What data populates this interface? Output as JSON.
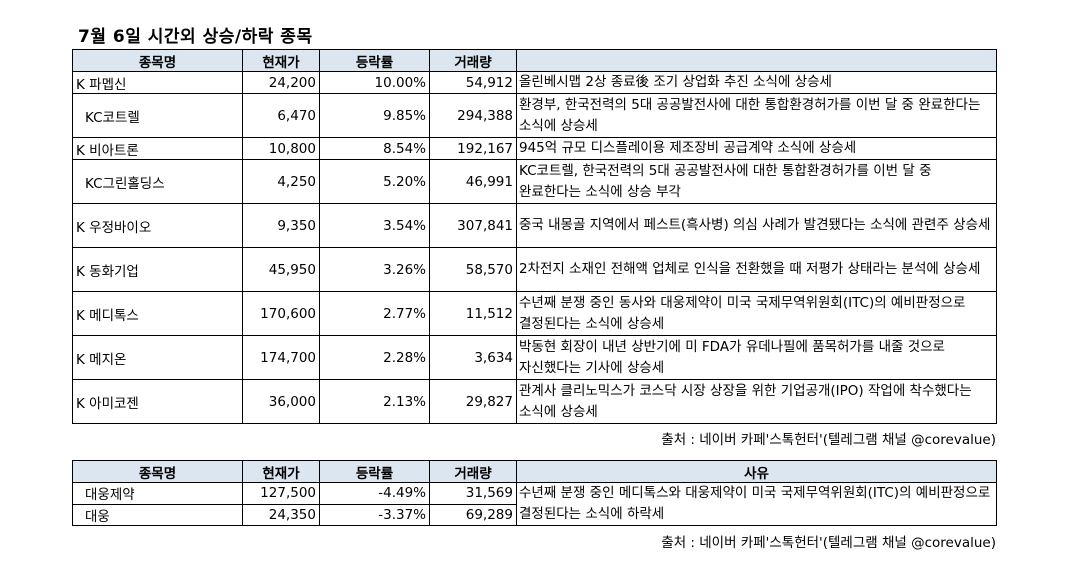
{
  "title": "7월 6일  시간외 상승/하락 종목",
  "up_table": {
    "headers": [
      "종목명",
      "현재가",
      "등락률",
      "거래량",
      ""
    ],
    "rows": [
      {
        "name": "K 파멥신",
        "indent": false,
        "price": "24,200",
        "change": "10.00%",
        "volume": "54,912",
        "reason": "올린베시맵 2상 종료後 조기 상업화 추진 소식에 상승세"
      },
      {
        "name": "KC코트렐",
        "indent": true,
        "price": "6,470",
        "change": "9.85%",
        "volume": "294,388",
        "reason": "환경부, 한국전력의 5대 공공발전사에 대한 통합환경허가를 이번 달 중 완료한다는 소식에 상승세"
      },
      {
        "name": "K 비아트론",
        "indent": false,
        "price": "10,800",
        "change": "8.54%",
        "volume": "192,167",
        "reason": "945억 규모 디스플레이용 제조장비 공급계약 소식에 상승세"
      },
      {
        "name": "KC그린홀딩스",
        "indent": true,
        "price": "4,250",
        "change": "5.20%",
        "volume": "46,991",
        "reason": "KC코트렐, 한국전력의 5대 공공발전사에 대한 통합환경허가를 이번 달 중 완료한다는 소식에 상승 부각"
      },
      {
        "name": "K 우정바이오",
        "indent": false,
        "price": "9,350",
        "change": "3.54%",
        "volume": "307,841",
        "reason": "중국 내몽골 지역에서 페스트(흑사병) 의심 사례가 발견됐다는 소식에 관련주 상승세"
      },
      {
        "name": "K 동화기업",
        "indent": false,
        "price": "45,950",
        "change": "3.26%",
        "volume": "58,570",
        "reason": "2차전지 소재인 전해액 업체로 인식을 전환했을 때 저평가 상태라는 분석에 상승세"
      },
      {
        "name": "K 메디톡스",
        "indent": false,
        "price": "170,600",
        "change": "2.77%",
        "volume": "11,512",
        "reason": "수년째 분쟁 중인 동사와 대웅제약이 미국 국제무역위원회(ITC)의 예비판정으로 결정된다는 소식에 상승세"
      },
      {
        "name": "K 메지온",
        "indent": false,
        "price": "174,700",
        "change": "2.28%",
        "volume": "3,634",
        "reason": "박동현 회장이 내년 상반기에 미 FDA가 유데나필에 품목허가를 내줄 것으로 자신했다는 기사에 상승세"
      },
      {
        "name": "K 아미코젠",
        "indent": false,
        "price": "36,000",
        "change": "2.13%",
        "volume": "29,827",
        "reason": "관계사 클리노믹스가 코스닥 시장 상장을 위한 기업공개(IPO) 작업에 착수했다는 소식에 상승세"
      }
    ]
  },
  "down_table": {
    "headers": [
      "종목명",
      "현재가",
      "등락률",
      "거래량",
      "사유"
    ],
    "rows": [
      {
        "name": "대웅제약",
        "price": "127,500",
        "change": "-4.49%",
        "volume": "31,569"
      },
      {
        "name": "대웅",
        "price": "24,350",
        "change": "-3.37%",
        "volume": "69,289"
      }
    ],
    "reason": "수년째 분쟁 중인 메디톡스와 대웅제약이 미국 국제무역위원회(ITC)의 예비판정으로 결정된다는 소식에 하락세"
  },
  "source": "출처 : 네이버 카페'스톡헌터'(텔레그램 채널 @corevalue)",
  "colors": {
    "header_bg": "#dce6f1",
    "border": "#000000"
  }
}
